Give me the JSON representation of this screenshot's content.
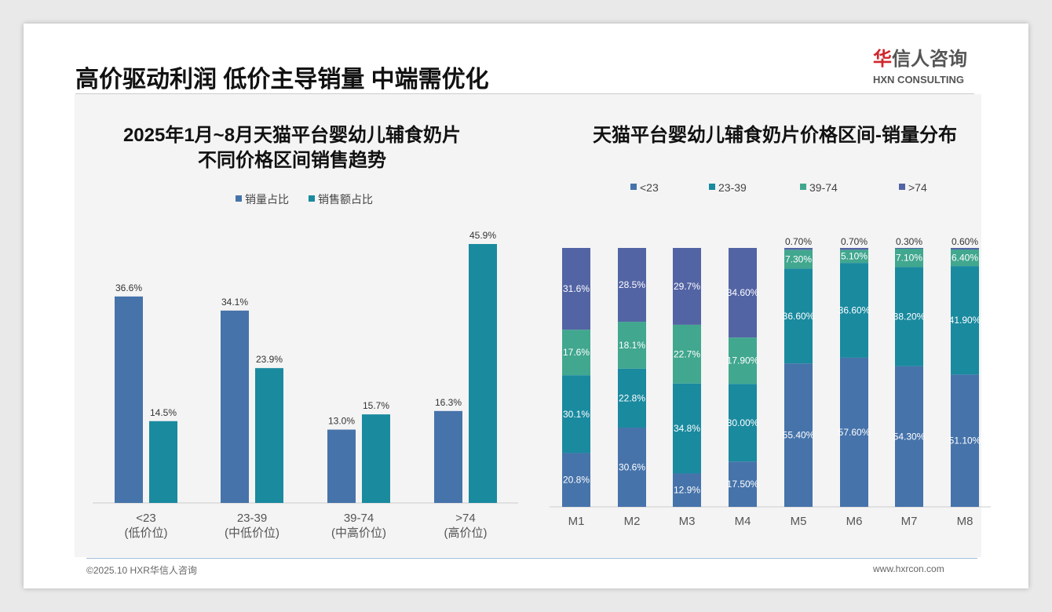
{
  "header": {
    "title": "高价驱动利润 低价主导销量 中端需优化",
    "logo_cn_red": "华",
    "logo_cn": "信人咨询",
    "logo_en": "HXN CONSULTING"
  },
  "footer": {
    "copyright": "©2025.10 HXR华信人咨询",
    "website": "www.hxrcon.com"
  },
  "colors": {
    "blue": "#4673aa",
    "teal": "#1a8a9f",
    "green": "#41a78f",
    "navy": "#5364a4"
  },
  "chart_data": [
    {
      "type": "bar",
      "title": "2025年1月~8月天猫平台婴幼儿辅食奶片",
      "subtitle": "不同价格区间销售趋势",
      "categories": [
        "<23",
        "23-39",
        "39-74",
        ">74"
      ],
      "category_sub": [
        "(低价位)",
        "(中低价位)",
        "(中高价位)",
        "(高价位)"
      ],
      "series": [
        {
          "name": "销量占比",
          "values": [
            36.6,
            34.1,
            13.0,
            16.3
          ],
          "labels": [
            "36.6%",
            "34.1%",
            "13.0%",
            "16.3%"
          ]
        },
        {
          "name": "销售额占比",
          "values": [
            14.5,
            23.9,
            15.7,
            45.9
          ],
          "labels": [
            "14.5%",
            "23.9%",
            "15.7%",
            "45.9%"
          ]
        }
      ],
      "legend": "top",
      "ylim": [
        0,
        45.9
      ]
    },
    {
      "type": "bar",
      "stacked": true,
      "title": "天猫平台婴幼儿辅食奶片价格区间-销量分布",
      "categories": [
        "M1",
        "M2",
        "M3",
        "M4",
        "M5",
        "M6",
        "M7",
        "M8"
      ],
      "series": [
        {
          "name": "<23",
          "values": [
            20.8,
            30.6,
            12.9,
            17.5,
            55.4,
            57.6,
            54.3,
            51.1
          ],
          "labels": [
            "20.8%",
            "30.6%",
            "12.9%",
            "17.50%",
            "55.40%",
            "57.60%",
            "54.30%",
            "51.10%"
          ]
        },
        {
          "name": "23-39",
          "values": [
            30.1,
            22.8,
            34.8,
            30.0,
            36.6,
            36.6,
            38.2,
            41.9
          ],
          "labels": [
            "30.1%",
            "22.8%",
            "34.8%",
            "30.00%",
            "36.60%",
            "36.60%",
            "38.20%",
            "41.90%"
          ]
        },
        {
          "name": "39-74",
          "values": [
            17.6,
            18.1,
            22.7,
            17.9,
            7.3,
            5.1,
            7.1,
            6.4
          ],
          "labels": [
            "17.6%",
            "18.1%",
            "22.7%",
            "17.90%",
            "7.30%",
            "5.10%",
            "7.10%",
            "6.40%"
          ]
        },
        {
          "name": ">74",
          "values": [
            31.6,
            28.5,
            29.7,
            34.6,
            0.7,
            0.7,
            0.3,
            0.6
          ],
          "labels": [
            "31.6%",
            "28.5%",
            "29.7%",
            "34.60%",
            "0.70%",
            "0.70%",
            "0.30%",
            "0.60%"
          ]
        }
      ],
      "legend": "top",
      "ylim": [
        0,
        100
      ]
    }
  ]
}
